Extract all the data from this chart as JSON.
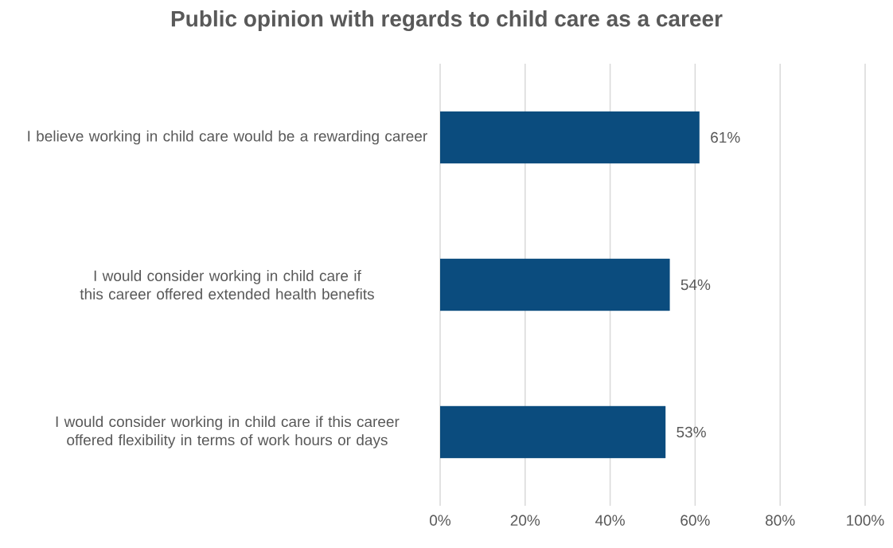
{
  "chart_data": {
    "type": "bar",
    "orientation": "horizontal",
    "title": "Public opinion with regards to child care as a career",
    "categories": [
      "I believe working in child care would be a rewarding career",
      "I would consider working in child care if this career offered extended health benefits",
      "I would consider working in child care if this career offered flexibility in terms of work hours or days"
    ],
    "values": [
      61,
      54,
      53
    ],
    "value_labels": [
      "61%",
      "54%",
      "53%"
    ],
    "color": "#0b4c7e",
    "xlim": [
      0,
      100
    ],
    "xticks": [
      {
        "value": 0,
        "label": "0%"
      },
      {
        "value": 20,
        "label": "20%"
      },
      {
        "value": 40,
        "label": "40%"
      },
      {
        "value": 60,
        "label": "60%"
      },
      {
        "value": 80,
        "label": "80%"
      },
      {
        "value": 100,
        "label": "100%"
      }
    ],
    "grid": "x"
  }
}
